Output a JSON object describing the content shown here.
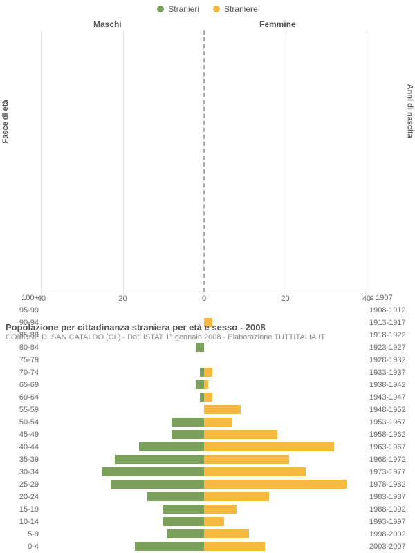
{
  "chart": {
    "type": "population-pyramid",
    "legend": [
      {
        "label": "Stranieri",
        "color": "#7ba05b"
      },
      {
        "label": "Straniere",
        "color": "#f5b942"
      }
    ],
    "column_headers": {
      "left": "Maschi",
      "right": "Femmine"
    },
    "y_title_left": "Fasce di età",
    "y_title_right": "Anni di nascita",
    "x_max": 40,
    "x_ticks": [
      40,
      20,
      0,
      20,
      40
    ],
    "colors": {
      "male": "#7ba05b",
      "female": "#f5b942",
      "grid": "#e6e6e6",
      "centerline": "#aaaaaa",
      "text": "#555555"
    },
    "rows": [
      {
        "age": "100+",
        "birth": "≤ 1907",
        "male": 0,
        "female": 0
      },
      {
        "age": "95-99",
        "birth": "1908-1912",
        "male": 0,
        "female": 0
      },
      {
        "age": "90-94",
        "birth": "1913-1917",
        "male": 0,
        "female": 2
      },
      {
        "age": "85-89",
        "birth": "1918-1922",
        "male": 0,
        "female": 0
      },
      {
        "age": "80-84",
        "birth": "1923-1927",
        "male": 2,
        "female": 0
      },
      {
        "age": "75-79",
        "birth": "1928-1932",
        "male": 0,
        "female": 0
      },
      {
        "age": "70-74",
        "birth": "1933-1937",
        "male": 1,
        "female": 2
      },
      {
        "age": "65-69",
        "birth": "1938-1942",
        "male": 2,
        "female": 1
      },
      {
        "age": "60-64",
        "birth": "1943-1947",
        "male": 1,
        "female": 2
      },
      {
        "age": "55-59",
        "birth": "1948-1952",
        "male": 0,
        "female": 9
      },
      {
        "age": "50-54",
        "birth": "1953-1957",
        "male": 8,
        "female": 7
      },
      {
        "age": "45-49",
        "birth": "1958-1962",
        "male": 8,
        "female": 18
      },
      {
        "age": "40-44",
        "birth": "1963-1967",
        "male": 16,
        "female": 32
      },
      {
        "age": "35-39",
        "birth": "1968-1972",
        "male": 22,
        "female": 21
      },
      {
        "age": "30-34",
        "birth": "1973-1977",
        "male": 25,
        "female": 25
      },
      {
        "age": "25-29",
        "birth": "1978-1982",
        "male": 23,
        "female": 35
      },
      {
        "age": "20-24",
        "birth": "1983-1987",
        "male": 14,
        "female": 16
      },
      {
        "age": "15-19",
        "birth": "1988-1992",
        "male": 10,
        "female": 8
      },
      {
        "age": "10-14",
        "birth": "1993-1997",
        "male": 10,
        "female": 5
      },
      {
        "age": "5-9",
        "birth": "1998-2002",
        "male": 9,
        "female": 11
      },
      {
        "age": "0-4",
        "birth": "2003-2007",
        "male": 17,
        "female": 15
      }
    ]
  },
  "footer": {
    "title": "Popolazione per cittadinanza straniera per età e sesso - 2008",
    "subtitle": "COMUNE DI SAN CATALDO (CL) - Dati ISTAT 1° gennaio 2008 - Elaborazione TUTTITALIA.IT"
  }
}
